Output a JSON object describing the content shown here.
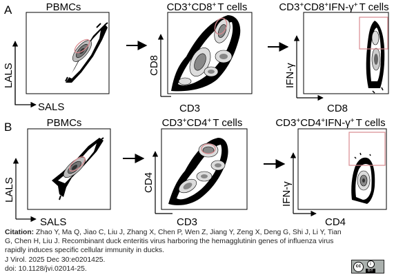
{
  "figure": {
    "row_a": {
      "letter": "A",
      "p1": {
        "title": "PBMCs",
        "xlabel": "SALS",
        "ylabel": "LALS"
      },
      "p2": {
        "title_main": "CD3",
        "title_sup1": "+",
        "title_mid": "CD8",
        "title_sup2": "+",
        "title_tail": "T cells",
        "xlabel": "CD3",
        "ylabel": "CD8"
      },
      "p3": {
        "title_main": "CD3",
        "title_sup1": "+",
        "title_mid": "CD8",
        "title_sup2": "+",
        "title_mid2": "IFN-γ",
        "title_sup3": "+",
        "title_tail": "T cells",
        "xlabel": "CD8",
        "ylabel": "IFN-γ"
      }
    },
    "row_b": {
      "letter": "B",
      "p1": {
        "title": "PBMCs",
        "xlabel": "SALS",
        "ylabel": "LALS"
      },
      "p2": {
        "title_main": "CD3",
        "title_sup1": "+",
        "title_mid": "CD4",
        "title_sup2": "+",
        "title_tail": "T cells",
        "xlabel": "CD3",
        "ylabel": "CD4"
      },
      "p3": {
        "title_main": "CD3",
        "title_sup1": "+",
        "title_mid": "CD4",
        "title_sup2": "+",
        "title_mid2": "IFN-γ",
        "title_sup3": "+",
        "title_tail": "T cells",
        "xlabel": "CD4",
        "ylabel": "IFN-γ"
      }
    },
    "colors": {
      "gate": "#d98a8f",
      "contour": "#000000"
    }
  },
  "citation": {
    "label": "Citation:",
    "authors": "Zhao Y, Ma Q, Jiao C, Liu J, Zhang X, Chen P, Wen Z, Jiang Y, Zeng X, Deng G, Shi J, Li Y, Tian G, Chen H, Liu J.",
    "title": "Recombinant duck enteritis virus harboring the hemagglutinin genes of influenza virus rapidly induces specific cellular immunity in ducks.",
    "journal": "J Virol. 2025 Dec 30:e0201425.",
    "doi": "doi: 10.1128/jvi.02014-25."
  },
  "license": {
    "cc_text": "cc",
    "by_symbol": "i",
    "by_text": "BY"
  }
}
